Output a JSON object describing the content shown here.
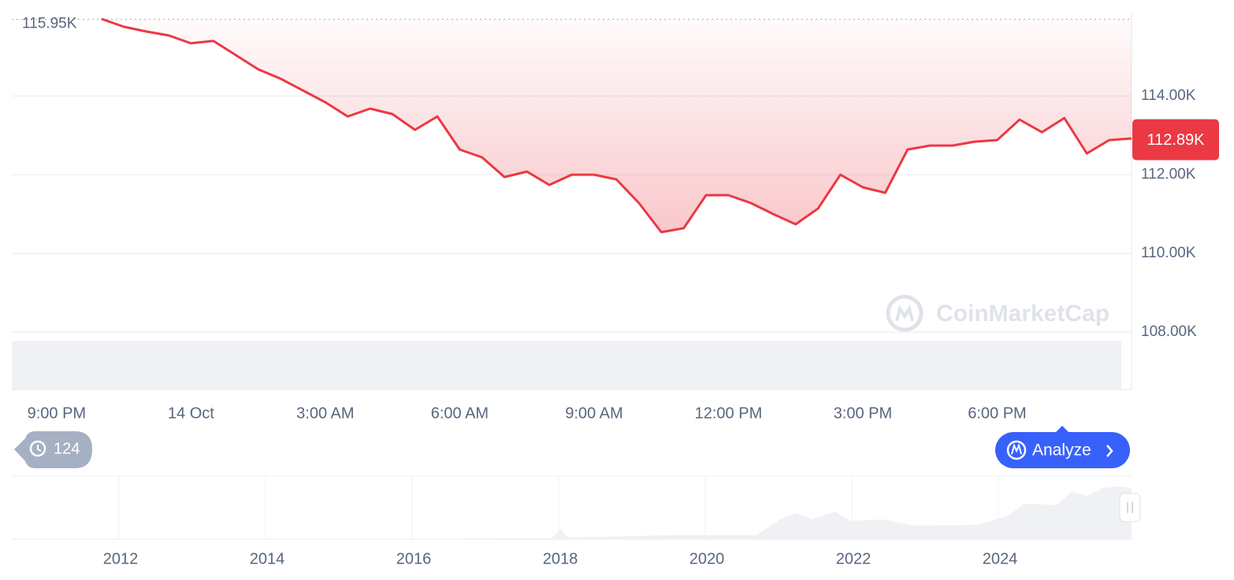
{
  "chart_data": {
    "type": "line",
    "categories": [
      null,
      null,
      "9:00 PM",
      null,
      null,
      null,
      null,
      null,
      "14 Oct",
      null,
      null,
      null,
      null,
      null,
      "3:00 AM",
      null,
      null,
      null,
      null,
      null,
      "6:00 AM",
      null,
      null,
      null,
      null,
      null,
      "9:00 AM",
      null,
      null,
      null,
      null,
      null,
      "12:00 PM",
      null,
      null,
      null,
      null,
      null,
      "3:00 PM",
      null,
      null,
      null,
      null,
      null,
      "6:00 PM",
      null,
      null,
      null,
      null,
      null,
      null
    ],
    "series": [
      {
        "color": "#ea3943",
        "values": [
          null,
          null,
          null,
          null,
          115960,
          115760,
          115640,
          115540,
          115340,
          115400,
          115040,
          114680,
          114440,
          114140,
          113840,
          113480,
          113680,
          113540,
          113140,
          113480,
          112640,
          112440,
          111940,
          112080,
          111740,
          112000,
          112000,
          111880,
          111280,
          110540,
          110640,
          111480,
          111480,
          111280,
          111000,
          110740,
          111140,
          112000,
          111680,
          111540,
          112640,
          112740,
          112740,
          112840,
          112880,
          113400,
          113080,
          113440,
          112540,
          112880,
          112920
        ]
      }
    ],
    "ylim": [
      108000,
      116080
    ],
    "yticks": [
      {
        "value": 108000,
        "label": "108.00K"
      },
      {
        "value": 110000,
        "label": "110.00K"
      },
      {
        "value": 112000,
        "label": "112.00K"
      },
      {
        "value": 114000,
        "label": "114.00K"
      }
    ],
    "grid": true,
    "max_marker": {
      "value": 115950,
      "label": "115.95K"
    },
    "last_marker": {
      "value": 112890,
      "label": "112.89K"
    }
  },
  "ui": {
    "watermark": "CoinMarketCap",
    "history_badge": "124",
    "analyze_button": "Analyze",
    "navigator_years": [
      "2012",
      "2014",
      "2016",
      "2018",
      "2020",
      "2022",
      "2024"
    ]
  }
}
